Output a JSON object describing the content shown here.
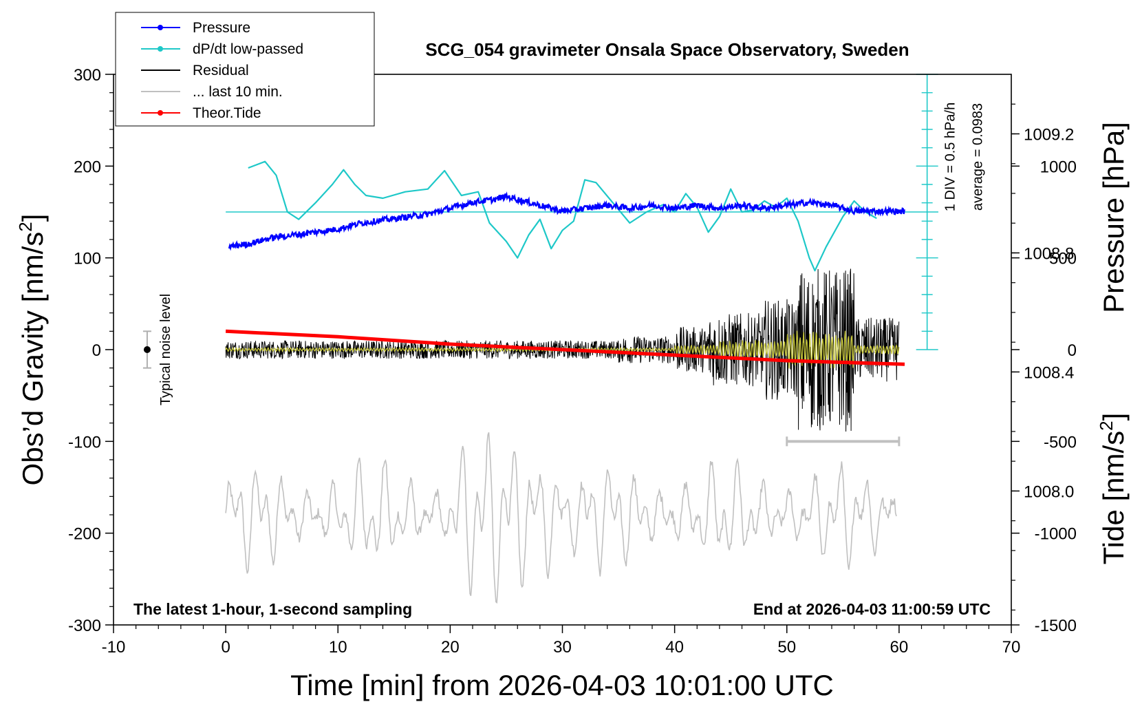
{
  "chart_data": {
    "type": "line",
    "title": "SCG_054 gravimeter Onsala Space Observatory, Sweden",
    "xlabel": "Time [min] from 2026-04-03 10:01:00 UTC",
    "ylabel_left": "Obs'd Gravity [nm/s²]",
    "ylabel_left_main": "Obs’d Gravity [nm/s",
    "ylabel_left_sup": "2",
    "ylabel_left_end": "]",
    "ylabel_right_pressure": "Pressure [hPa]",
    "ylabel_right_tide": "Tide [nm/s²]",
    "ylabel_right_tide_main": "Tide [nm/s",
    "ylabel_right_tide_sup": "2",
    "ylabel_right_tide_end": "]",
    "xlim": [
      -10,
      70
    ],
    "ylim_left": [
      -300,
      300
    ],
    "ylim_pressure": [
      1007.55,
      1009.4
    ],
    "ylim_tide": [
      -1500,
      1500
    ],
    "x_ticks": [
      -10,
      0,
      10,
      20,
      30,
      40,
      50,
      60,
      70
    ],
    "x_tick_labels": [
      "-10",
      "0",
      "10",
      "20",
      "30",
      "40",
      "50",
      "60",
      "70"
    ],
    "y_ticks_left": [
      300,
      200,
      100,
      0,
      -100,
      -200,
      -300
    ],
    "y_tick_labels_left": [
      "300",
      "200",
      "100",
      "0",
      "-100",
      "-200",
      "-300"
    ],
    "y_ticks_pressure": [
      1009.2,
      1008.8,
      1008.4,
      1008.0
    ],
    "y_tick_labels_pressure": [
      "1009.2",
      "1008.8",
      "1008.4",
      "1008.0"
    ],
    "y_ticks_tide": [
      1000,
      500,
      0,
      -500,
      -1000,
      -1500
    ],
    "y_tick_labels_tide": [
      "1000",
      "500",
      "0",
      "-500",
      "-1000",
      "-1500"
    ],
    "legend_position": "top-left",
    "legend": [
      {
        "label": "Pressure",
        "color": "#0000ff",
        "marker": "dot"
      },
      {
        "label": "dP/dt low-passed",
        "color": "#1ec8c8",
        "marker": "dot"
      },
      {
        "label": "Residual",
        "color": "#000000",
        "marker": "none"
      },
      {
        "label": "... last 10 min.",
        "color": "#c0c0c0",
        "marker": "none"
      },
      {
        "label": "Theor.Tide",
        "color": "#ff0000",
        "marker": "dot"
      }
    ],
    "series": [
      {
        "name": "Pressure",
        "color": "#0000ff",
        "axis": "pressure",
        "x": [
          0,
          2,
          4,
          6,
          8,
          10,
          12,
          14,
          16,
          18,
          20,
          22,
          24,
          25,
          26,
          28,
          30,
          32,
          34,
          36,
          38,
          40,
          42,
          44,
          46,
          48,
          50,
          52,
          54,
          56,
          58,
          60
        ],
        "y": [
          1008.82,
          1008.83,
          1008.85,
          1008.86,
          1008.87,
          1008.88,
          1008.9,
          1008.91,
          1008.92,
          1008.93,
          1008.95,
          1008.97,
          1008.98,
          1008.99,
          1008.98,
          1008.96,
          1008.94,
          1008.95,
          1008.96,
          1008.95,
          1008.96,
          1008.95,
          1008.96,
          1008.95,
          1008.96,
          1008.95,
          1008.96,
          1008.97,
          1008.96,
          1008.94,
          1008.94,
          1008.94
        ]
      },
      {
        "name": "dP/dt low-passed",
        "color": "#1ec8c8",
        "axis": "left",
        "x": [
          2,
          3.5,
          4.5,
          5.5,
          6.5,
          8,
          9.5,
          10.5,
          11.5,
          12.5,
          14,
          16,
          18,
          19.5,
          21,
          22.5,
          23.5,
          25,
          26,
          27,
          28,
          29,
          30,
          31,
          32,
          33,
          34.5,
          36,
          37.5,
          39,
          40,
          41,
          42,
          43,
          44,
          45,
          46,
          47,
          48,
          49,
          50,
          51,
          52,
          52.5,
          53.5,
          55,
          56,
          57,
          58
        ],
        "y": [
          198,
          205,
          190,
          150,
          142,
          160,
          180,
          196,
          180,
          168,
          165,
          172,
          175,
          195,
          168,
          172,
          138,
          118,
          100,
          125,
          142,
          110,
          130,
          140,
          185,
          182,
          160,
          138,
          150,
          158,
          150,
          170,
          155,
          128,
          145,
          175,
          150,
          152,
          162,
          155,
          165,
          140,
          100,
          86,
          112,
          145,
          162,
          150,
          143
        ]
      },
      {
        "name": "Residual",
        "color": "#000000",
        "axis": "left",
        "x": [
          0,
          60
        ],
        "y": [
          0,
          0
        ]
      },
      {
        "name": "... last 10 min.",
        "color": "#c0c0c0",
        "axis": "left",
        "x": [
          50,
          60
        ],
        "y": [
          -100,
          -100
        ]
      },
      {
        "name": "Theor.Tide",
        "color": "#ff0000",
        "axis": "tide",
        "x": [
          0,
          10,
          20,
          30,
          40,
          50,
          60.5
        ],
        "y": [
          100,
          70,
          30,
          0,
          -30,
          -60,
          -80
        ]
      }
    ],
    "noise_level": {
      "label": "Typical noise level",
      "x": -7,
      "y": 0,
      "error": 20
    },
    "reference_line": {
      "axis": "left",
      "y": 150,
      "color": "#1ec8c8"
    },
    "dpdt_scale": {
      "label1": "1 DIV = 0.5 hPa/h",
      "label2": "average = 0.0983",
      "x": 62.5,
      "range": [
        0,
        300
      ]
    },
    "footer_left": "The latest 1-hour, 1-second sampling",
    "footer_right": "End at 2026-04-03 11:00:59 UTC"
  }
}
